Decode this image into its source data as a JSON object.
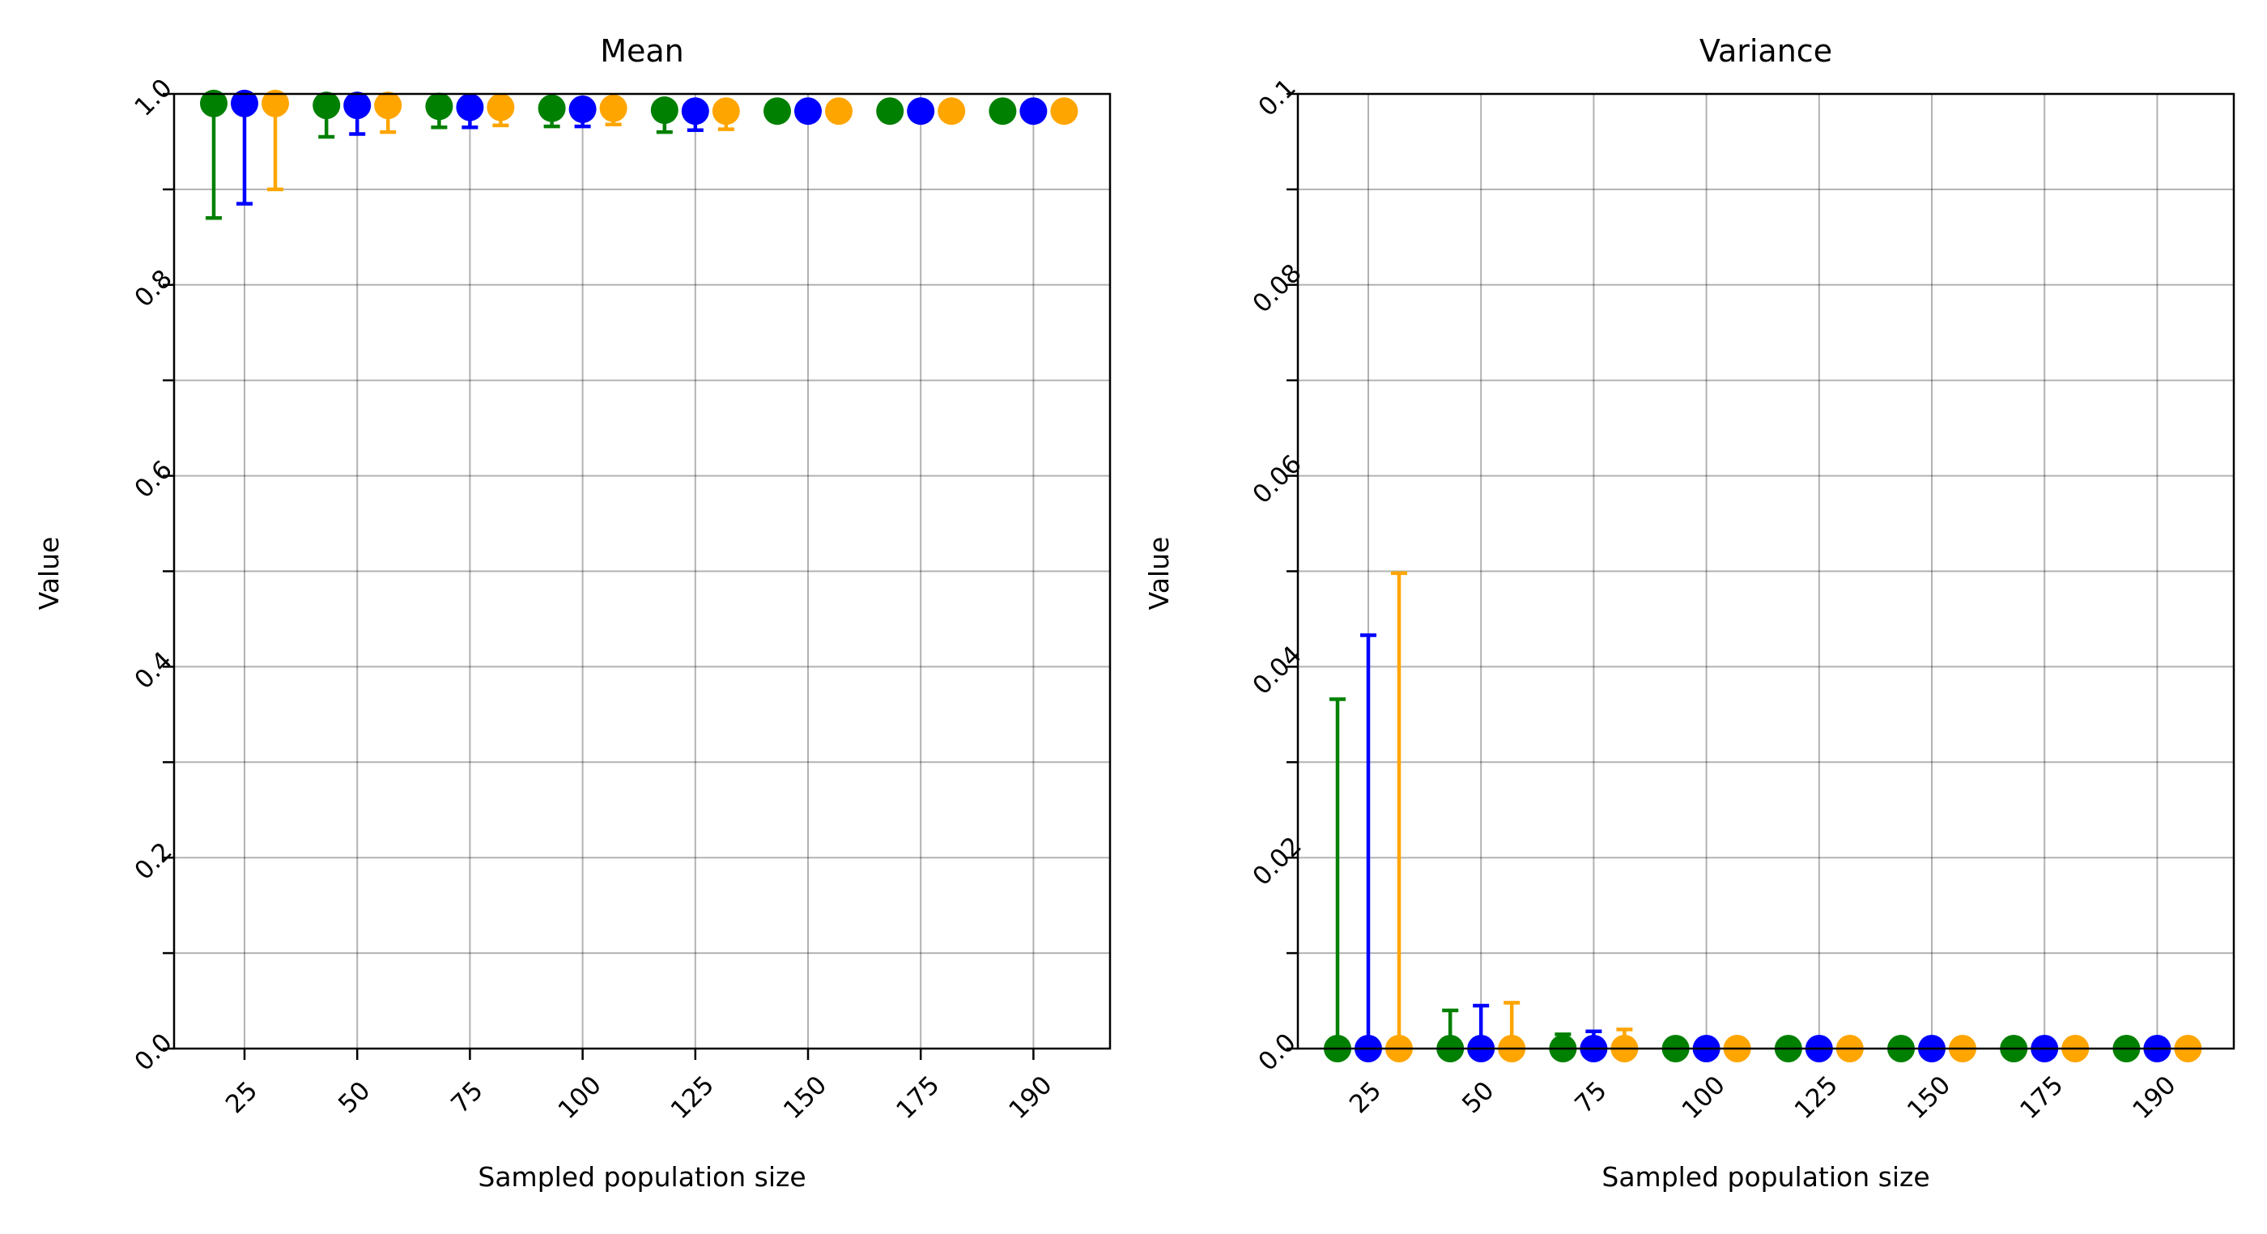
{
  "chart_data": [
    {
      "type": "scatter",
      "title": "Mean",
      "xlabel": "Sampled population size",
      "ylabel": "Value",
      "categories": [
        "25",
        "50",
        "75",
        "100",
        "125",
        "150",
        "175",
        "190"
      ],
      "ylim": [
        0,
        1.0
      ],
      "yticks": [
        0.0,
        0.1,
        0.2,
        0.3,
        0.4,
        0.5,
        0.6,
        0.7,
        0.8,
        0.9,
        1.0
      ],
      "ytick_labels": [
        "0.0",
        "",
        "0.2",
        "",
        "0.4",
        "",
        "0.6",
        "",
        "0.8",
        "",
        "1.0"
      ],
      "grid": true,
      "series": [
        {
          "color": "#008000",
          "values": [
            0.99,
            0.988,
            0.987,
            0.985,
            0.983,
            0.982,
            0.982,
            0.982
          ],
          "err_low": [
            0.87,
            0.955,
            0.965,
            0.966,
            0.96,
            0.982,
            0.982,
            0.982
          ],
          "err_high": [
            0.99,
            0.988,
            0.987,
            0.985,
            0.983,
            0.982,
            0.982,
            0.982
          ]
        },
        {
          "color": "#0000ff",
          "values": [
            0.99,
            0.988,
            0.986,
            0.984,
            0.982,
            0.982,
            0.982,
            0.982
          ],
          "err_low": [
            0.885,
            0.958,
            0.965,
            0.966,
            0.962,
            0.982,
            0.982,
            0.982
          ],
          "err_high": [
            0.99,
            0.988,
            0.986,
            0.984,
            0.982,
            0.982,
            0.982,
            0.982
          ]
        },
        {
          "color": "#ffa500",
          "values": [
            0.99,
            0.988,
            0.986,
            0.985,
            0.982,
            0.982,
            0.982,
            0.982
          ],
          "err_low": [
            0.9,
            0.96,
            0.967,
            0.968,
            0.963,
            0.982,
            0.982,
            0.982
          ],
          "err_high": [
            0.99,
            0.988,
            0.986,
            0.985,
            0.982,
            0.982,
            0.982,
            0.982
          ]
        }
      ]
    },
    {
      "type": "scatter",
      "title": "Variance",
      "xlabel": "Sampled population size",
      "ylabel": "Value",
      "categories": [
        "25",
        "50",
        "75",
        "100",
        "125",
        "150",
        "175",
        "190"
      ],
      "ylim": [
        0,
        0.1
      ],
      "yticks": [
        0.0,
        0.01,
        0.02,
        0.03,
        0.04,
        0.05,
        0.06,
        0.07,
        0.08,
        0.09,
        0.1
      ],
      "ytick_labels": [
        "0.0",
        "",
        "0.02",
        "",
        "0.04",
        "",
        "0.06",
        "",
        "0.08",
        "",
        "0.1"
      ],
      "grid": true,
      "series": [
        {
          "color": "#008000",
          "values": [
            0.0,
            0.0,
            0.0,
            0.0,
            0.0,
            0.0,
            0.0,
            0.0
          ],
          "err_low": [
            0.0,
            0.0,
            0.0,
            0.0,
            0.0,
            0.0,
            0.0,
            0.0
          ],
          "err_high": [
            0.0366,
            0.004,
            0.0015,
            0.0,
            0.0,
            0.0,
            0.0,
            0.0
          ]
        },
        {
          "color": "#0000ff",
          "values": [
            0.0,
            0.0,
            0.0,
            0.0,
            0.0,
            0.0,
            0.0,
            0.0
          ],
          "err_low": [
            0.0,
            0.0,
            0.0,
            0.0,
            0.0,
            0.0,
            0.0,
            0.0
          ],
          "err_high": [
            0.0433,
            0.0045,
            0.0018,
            0.0,
            0.0,
            0.0,
            0.0,
            0.0
          ]
        },
        {
          "color": "#ffa500",
          "values": [
            0.0,
            0.0,
            0.0,
            0.0,
            0.0,
            0.0,
            0.0,
            0.0
          ],
          "err_low": [
            0.0,
            0.0,
            0.0,
            0.0,
            0.0,
            0.0,
            0.0,
            0.0
          ],
          "err_high": [
            0.0498,
            0.0048,
            0.002,
            0.0,
            0.0,
            0.0,
            0.0,
            0.0
          ]
        }
      ]
    }
  ]
}
